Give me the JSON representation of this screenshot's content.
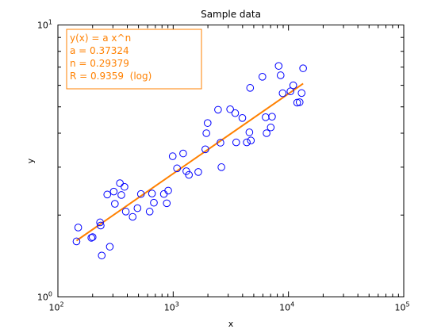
{
  "chart_data": {
    "type": "scatter",
    "title": "Sample data",
    "xlabel": "x",
    "ylabel": "y",
    "xscale": "log",
    "yscale": "log",
    "xlim": [
      100,
      100000
    ],
    "ylim": [
      1,
      10
    ],
    "grid": false,
    "x_ticks": [
      {
        "value": 100,
        "base": "10",
        "exp": "2"
      },
      {
        "value": 1000,
        "base": "10",
        "exp": "3"
      },
      {
        "value": 10000,
        "base": "10",
        "exp": "4"
      },
      {
        "value": 100000,
        "base": "10",
        "exp": "5"
      }
    ],
    "y_ticks": [
      {
        "value": 1,
        "base": "10",
        "exp": "0"
      },
      {
        "value": 10,
        "base": "10",
        "exp": "1"
      }
    ],
    "series": [
      {
        "kind": "scatter",
        "marker": "open-circle",
        "color": "#0000ff",
        "points": [
          [
            145,
            1.6
          ],
          [
            150,
            1.8
          ],
          [
            195,
            1.65
          ],
          [
            200,
            1.66
          ],
          [
            232,
            1.88
          ],
          [
            235,
            1.83
          ],
          [
            240,
            1.42
          ],
          [
            268,
            2.38
          ],
          [
            282,
            1.53
          ],
          [
            305,
            2.44
          ],
          [
            312,
            2.2
          ],
          [
            345,
            2.62
          ],
          [
            355,
            2.37
          ],
          [
            378,
            2.54
          ],
          [
            388,
            2.06
          ],
          [
            445,
            1.97
          ],
          [
            490,
            2.12
          ],
          [
            525,
            2.39
          ],
          [
            625,
            2.06
          ],
          [
            655,
            2.4
          ],
          [
            680,
            2.22
          ],
          [
            830,
            2.39
          ],
          [
            880,
            2.21
          ],
          [
            905,
            2.46
          ],
          [
            990,
            3.29
          ],
          [
            1080,
            2.97
          ],
          [
            1220,
            3.37
          ],
          [
            1300,
            2.9
          ],
          [
            1370,
            2.81
          ],
          [
            1650,
            2.88
          ],
          [
            1900,
            3.49
          ],
          [
            1940,
            4.0
          ],
          [
            1990,
            4.36
          ],
          [
            2450,
            4.88
          ],
          [
            2570,
            3.69
          ],
          [
            2620,
            3.0
          ],
          [
            3120,
            4.9
          ],
          [
            3450,
            4.74
          ],
          [
            3520,
            3.7
          ],
          [
            3980,
            4.55
          ],
          [
            4350,
            3.7
          ],
          [
            4580,
            4.03
          ],
          [
            4650,
            5.87
          ],
          [
            4720,
            3.76
          ],
          [
            5940,
            6.45
          ],
          [
            6340,
            4.58
          ],
          [
            6460,
            4.0
          ],
          [
            7020,
            4.2
          ],
          [
            7200,
            4.6
          ],
          [
            8220,
            7.07
          ],
          [
            8550,
            6.53
          ],
          [
            8900,
            5.61
          ],
          [
            10400,
            5.7
          ],
          [
            11000,
            6.0
          ],
          [
            11900,
            5.18
          ],
          [
            12500,
            5.2
          ],
          [
            13000,
            5.62
          ],
          [
            13400,
            6.93
          ]
        ]
      },
      {
        "kind": "fit",
        "name": "y(x) = a x^n",
        "color": "#ff8000",
        "a": 0.37324,
        "n": 0.29379,
        "x_range": [
          145,
          13400
        ]
      }
    ],
    "annotation": {
      "color": "#ff8000",
      "placement": "top-left",
      "lines": [
        "y(x) = a x^n",
        "a = 0.37324",
        "n = 0.29379",
        "R = 0.9359  (log)"
      ]
    }
  }
}
